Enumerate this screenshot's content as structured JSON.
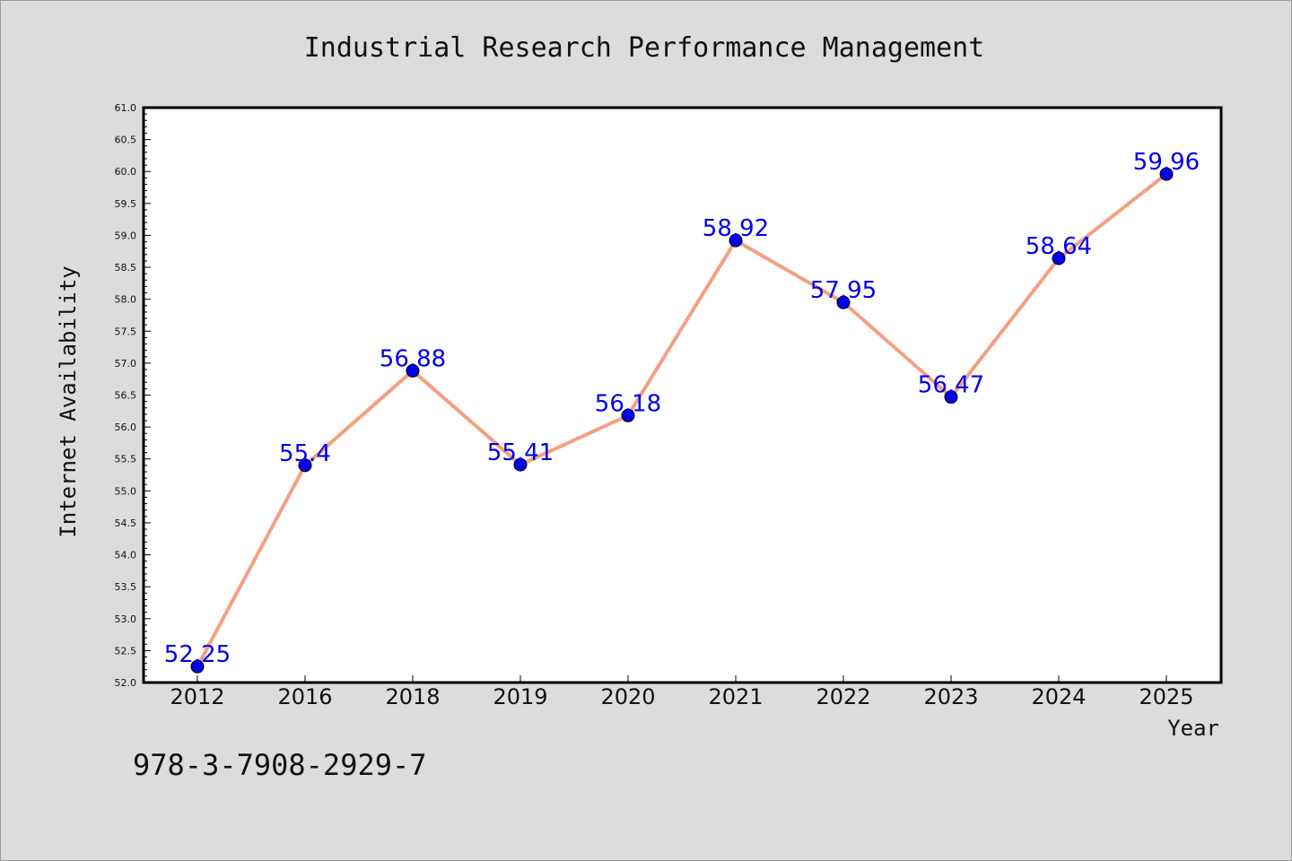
{
  "chart_data": {
    "type": "line",
    "title": "Industrial Research Performance Management",
    "xlabel": "Year",
    "ylabel": "Internet Availability",
    "categories": [
      "2012",
      "2016",
      "2018",
      "2019",
      "2020",
      "2021",
      "2022",
      "2023",
      "2024",
      "2025"
    ],
    "series": [
      {
        "values": [
          52.25,
          55.4,
          56.88,
          55.41,
          56.18,
          58.92,
          57.95,
          56.47,
          58.64,
          59.96
        ],
        "data_labels": [
          "52.25",
          "55.4",
          "56.88",
          "55.41",
          "56.18",
          "58.92",
          "57.95",
          "56.47",
          "58.64",
          "59.96"
        ],
        "line_color": "#f4a07f",
        "marker_color": "#0000ee"
      }
    ],
    "ylim": [
      52.0,
      61.0
    ],
    "yticks": [
      "52.0",
      "52.5",
      "53.0",
      "53.5",
      "54.0",
      "54.5",
      "55.0",
      "55.5",
      "56.0",
      "56.5",
      "57.0",
      "57.5",
      "58.0",
      "58.5",
      "59.0",
      "59.5",
      "60.0",
      "60.5",
      "61.0"
    ],
    "grid": false,
    "label_color": "#0000ee"
  },
  "footer": {
    "text": "978-3-7908-2929-7"
  },
  "colors": {
    "background": "#dcdcdc",
    "plot_background": "#ffffff",
    "axis": "#000000"
  }
}
